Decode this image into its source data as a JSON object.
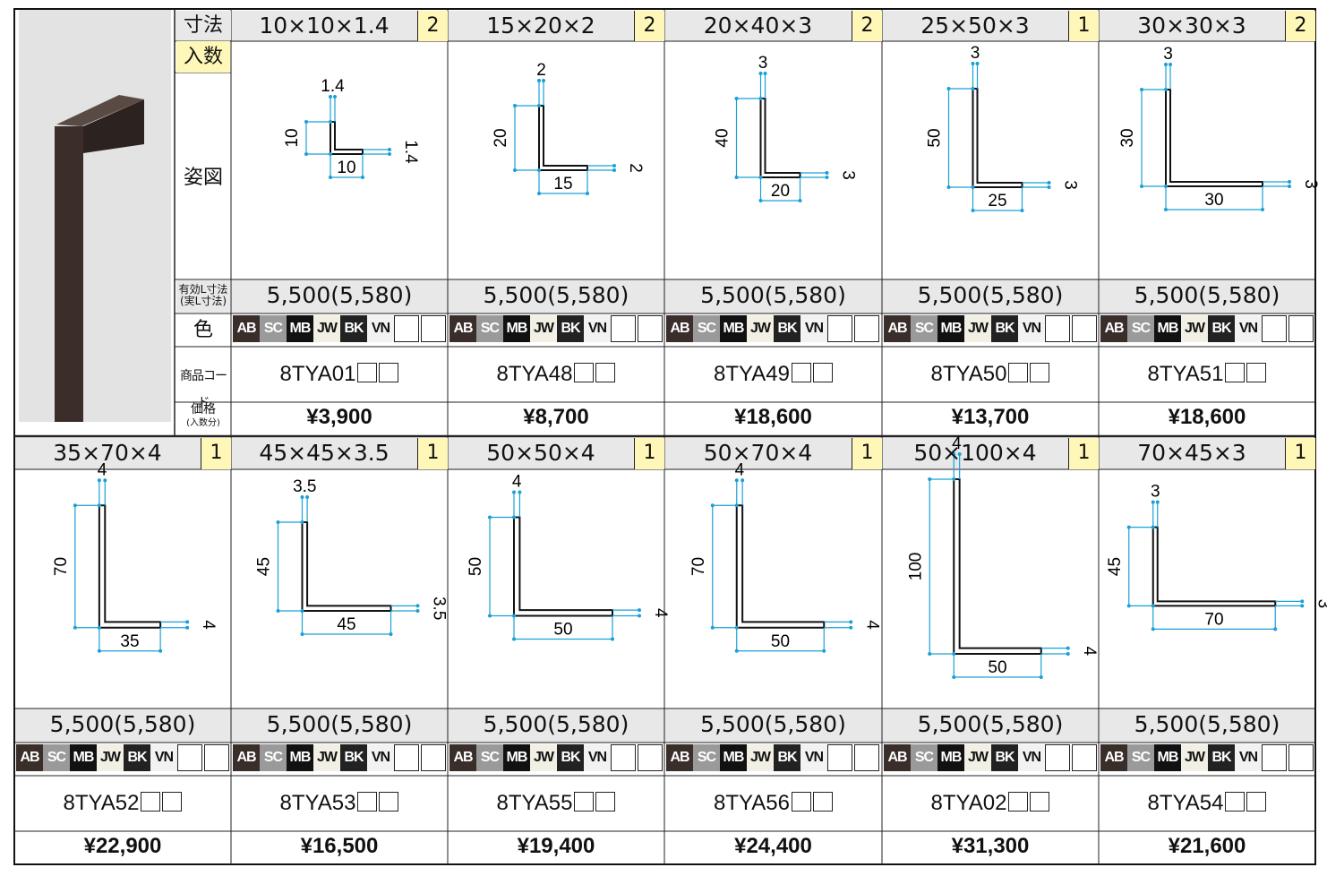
{
  "labels": {
    "size": "寸法",
    "quantity": "入数",
    "drawing": "姿図",
    "length_line1": "有効L寸法",
    "length_line2": "(実L寸法)",
    "color": "色",
    "code": "商品コード",
    "price_line1": "価格",
    "price_line2": "(入数分)"
  },
  "colors": [
    {
      "code": "AB",
      "bg": "#3a2e2a",
      "fg": "#ffffff"
    },
    {
      "code": "SC",
      "bg": "#9a9a9a",
      "fg": "#ffffff"
    },
    {
      "code": "MB",
      "bg": "#111111",
      "fg": "#ffffff"
    },
    {
      "code": "JW",
      "bg": "#f2efe4",
      "fg": "#111111"
    },
    {
      "code": "BK",
      "bg": "#222222",
      "fg": "#ffffff"
    },
    {
      "code": "VN",
      "bg": "#f2f2f2",
      "fg": "#111111"
    }
  ],
  "line_color": "#1aa0d6",
  "products": [
    {
      "size": "10×10×1.4",
      "qty": "2",
      "a": 10,
      "b": 10,
      "t": 1.4,
      "length": "5,500(5,580)",
      "code": "8TYA01",
      "price": "¥3,900"
    },
    {
      "size": "15×20×2",
      "qty": "2",
      "a": 20,
      "b": 15,
      "t": 2,
      "length": "5,500(5,580)",
      "code": "8TYA48",
      "price": "¥8,700"
    },
    {
      "size": "20×40×3",
      "qty": "2",
      "a": 40,
      "b": 20,
      "t": 3,
      "length": "5,500(5,580)",
      "code": "8TYA49",
      "price": "¥18,600"
    },
    {
      "size": "25×50×3",
      "qty": "1",
      "a": 50,
      "b": 25,
      "t": 3,
      "length": "5,500(5,580)",
      "code": "8TYA50",
      "price": "¥13,700"
    },
    {
      "size": "30×30×3",
      "qty": "2",
      "a": 30,
      "b": 30,
      "t": 3,
      "length": "5,500(5,580)",
      "code": "8TYA51",
      "price": "¥18,600"
    },
    {
      "size": "35×70×4",
      "qty": "1",
      "a": 70,
      "b": 35,
      "t": 4,
      "length": "5,500(5,580)",
      "code": "8TYA52",
      "price": "¥22,900"
    },
    {
      "size": "45×45×3.5",
      "qty": "1",
      "a": 45,
      "b": 45,
      "t": 3.5,
      "length": "5,500(5,580)",
      "code": "8TYA53",
      "price": "¥16,500"
    },
    {
      "size": "50×50×4",
      "qty": "1",
      "a": 50,
      "b": 50,
      "t": 4,
      "length": "5,500(5,580)",
      "code": "8TYA55",
      "price": "¥19,400"
    },
    {
      "size": "50×70×4",
      "qty": "1",
      "a": 70,
      "b": 50,
      "t": 4,
      "length": "5,500(5,580)",
      "code": "8TYA56",
      "price": "¥24,400"
    },
    {
      "size": "50×100×4",
      "qty": "1",
      "a": 100,
      "b": 50,
      "t": 4,
      "length": "5,500(5,580)",
      "code": "8TYA02",
      "price": "¥31,300"
    },
    {
      "size": "70×45×3",
      "qty": "1",
      "a": 45,
      "b": 70,
      "t": 3,
      "length": "5,500(5,580)",
      "code": "8TYA54",
      "price": "¥21,600"
    }
  ]
}
